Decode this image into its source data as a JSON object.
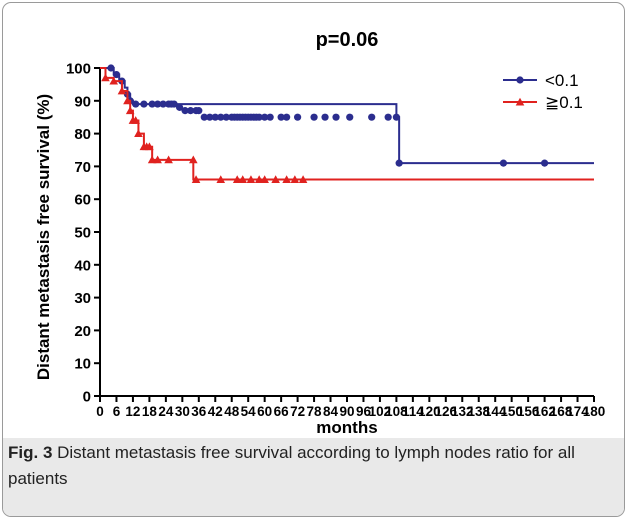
{
  "chart_data": {
    "type": "line",
    "title": "p=0.06",
    "xlabel": "months",
    "ylabel": "Distant metastasis free survival (%)",
    "xlim": [
      0,
      180
    ],
    "ylim": [
      0,
      100
    ],
    "xticks": [
      "0",
      "6",
      "12",
      "18",
      "24",
      "30",
      "36",
      "42",
      "48",
      "54",
      "60",
      "66",
      "72",
      "78",
      "84",
      "90",
      "96",
      "102",
      "108",
      "114",
      "120",
      "126",
      "132",
      "138",
      "144",
      "150",
      "156",
      "162",
      "168",
      "174",
      "180"
    ],
    "yticks": [
      "0",
      "10",
      "20",
      "30",
      "40",
      "50",
      "60",
      "70",
      "80",
      "90",
      "100"
    ],
    "legend": "top-right",
    "grid": false,
    "series": [
      {
        "name": "<0.1",
        "color": "#2b2d8e",
        "marker": "circle",
        "steps": [
          [
            0,
            100
          ],
          [
            4,
            100
          ],
          [
            5,
            98
          ],
          [
            7,
            96
          ],
          [
            9,
            94
          ],
          [
            10,
            92
          ],
          [
            11,
            90
          ],
          [
            12,
            89
          ],
          [
            108,
            89
          ],
          [
            108,
            85
          ],
          [
            109,
            85
          ],
          [
            109,
            71
          ],
          [
            180,
            71
          ]
        ],
        "censored": [
          [
            4,
            100
          ],
          [
            6,
            98
          ],
          [
            8,
            96
          ],
          [
            10,
            92
          ],
          [
            11,
            90
          ],
          [
            13,
            89
          ],
          [
            16,
            89
          ],
          [
            19,
            89
          ],
          [
            21,
            89
          ],
          [
            23,
            89
          ],
          [
            25,
            89
          ],
          [
            26,
            89
          ],
          [
            27,
            89
          ],
          [
            29,
            88
          ],
          [
            31,
            87
          ],
          [
            33,
            87
          ],
          [
            35,
            87
          ],
          [
            36,
            87
          ],
          [
            38,
            85
          ],
          [
            40,
            85
          ],
          [
            42,
            85
          ],
          [
            44,
            85
          ],
          [
            46,
            85
          ],
          [
            48,
            85
          ],
          [
            49,
            85
          ],
          [
            50,
            85
          ],
          [
            51,
            85
          ],
          [
            52,
            85
          ],
          [
            53,
            85
          ],
          [
            54,
            85
          ],
          [
            55,
            85
          ],
          [
            56,
            85
          ],
          [
            57,
            85
          ],
          [
            58,
            85
          ],
          [
            60,
            85
          ],
          [
            62,
            85
          ],
          [
            66,
            85
          ],
          [
            68,
            85
          ],
          [
            72,
            85
          ],
          [
            78,
            85
          ],
          [
            82,
            85
          ],
          [
            86,
            85
          ],
          [
            91,
            85
          ],
          [
            99,
            85
          ],
          [
            105,
            85
          ],
          [
            108,
            85
          ],
          [
            109,
            71
          ],
          [
            147,
            71
          ],
          [
            162,
            71
          ]
        ]
      },
      {
        "name": "≧0.1",
        "color": "#e0221f",
        "marker": "triangle",
        "steps": [
          [
            0,
            100
          ],
          [
            2,
            97
          ],
          [
            5,
            96
          ],
          [
            8,
            93
          ],
          [
            10,
            90
          ],
          [
            11,
            87
          ],
          [
            12,
            84
          ],
          [
            14,
            80
          ],
          [
            16,
            76
          ],
          [
            18,
            76
          ],
          [
            19,
            72
          ],
          [
            34,
            72
          ],
          [
            34,
            66
          ],
          [
            180,
            66
          ]
        ],
        "censored": [
          [
            2,
            97
          ],
          [
            5,
            96
          ],
          [
            8,
            93
          ],
          [
            10,
            90
          ],
          [
            11,
            87
          ],
          [
            12,
            84
          ],
          [
            13,
            84
          ],
          [
            14,
            80
          ],
          [
            16,
            76
          ],
          [
            17,
            76
          ],
          [
            18,
            76
          ],
          [
            19,
            72
          ],
          [
            21,
            72
          ],
          [
            25,
            72
          ],
          [
            34,
            72
          ],
          [
            35,
            66
          ],
          [
            44,
            66
          ],
          [
            50,
            66
          ],
          [
            52,
            66
          ],
          [
            55,
            66
          ],
          [
            58,
            66
          ],
          [
            60,
            66
          ],
          [
            64,
            66
          ],
          [
            68,
            66
          ],
          [
            71,
            66
          ],
          [
            74,
            66
          ]
        ]
      }
    ]
  },
  "caption": {
    "label": "Fig. 3",
    "text": " Distant metastasis free survival according to lymph nodes ratio for all patients"
  }
}
